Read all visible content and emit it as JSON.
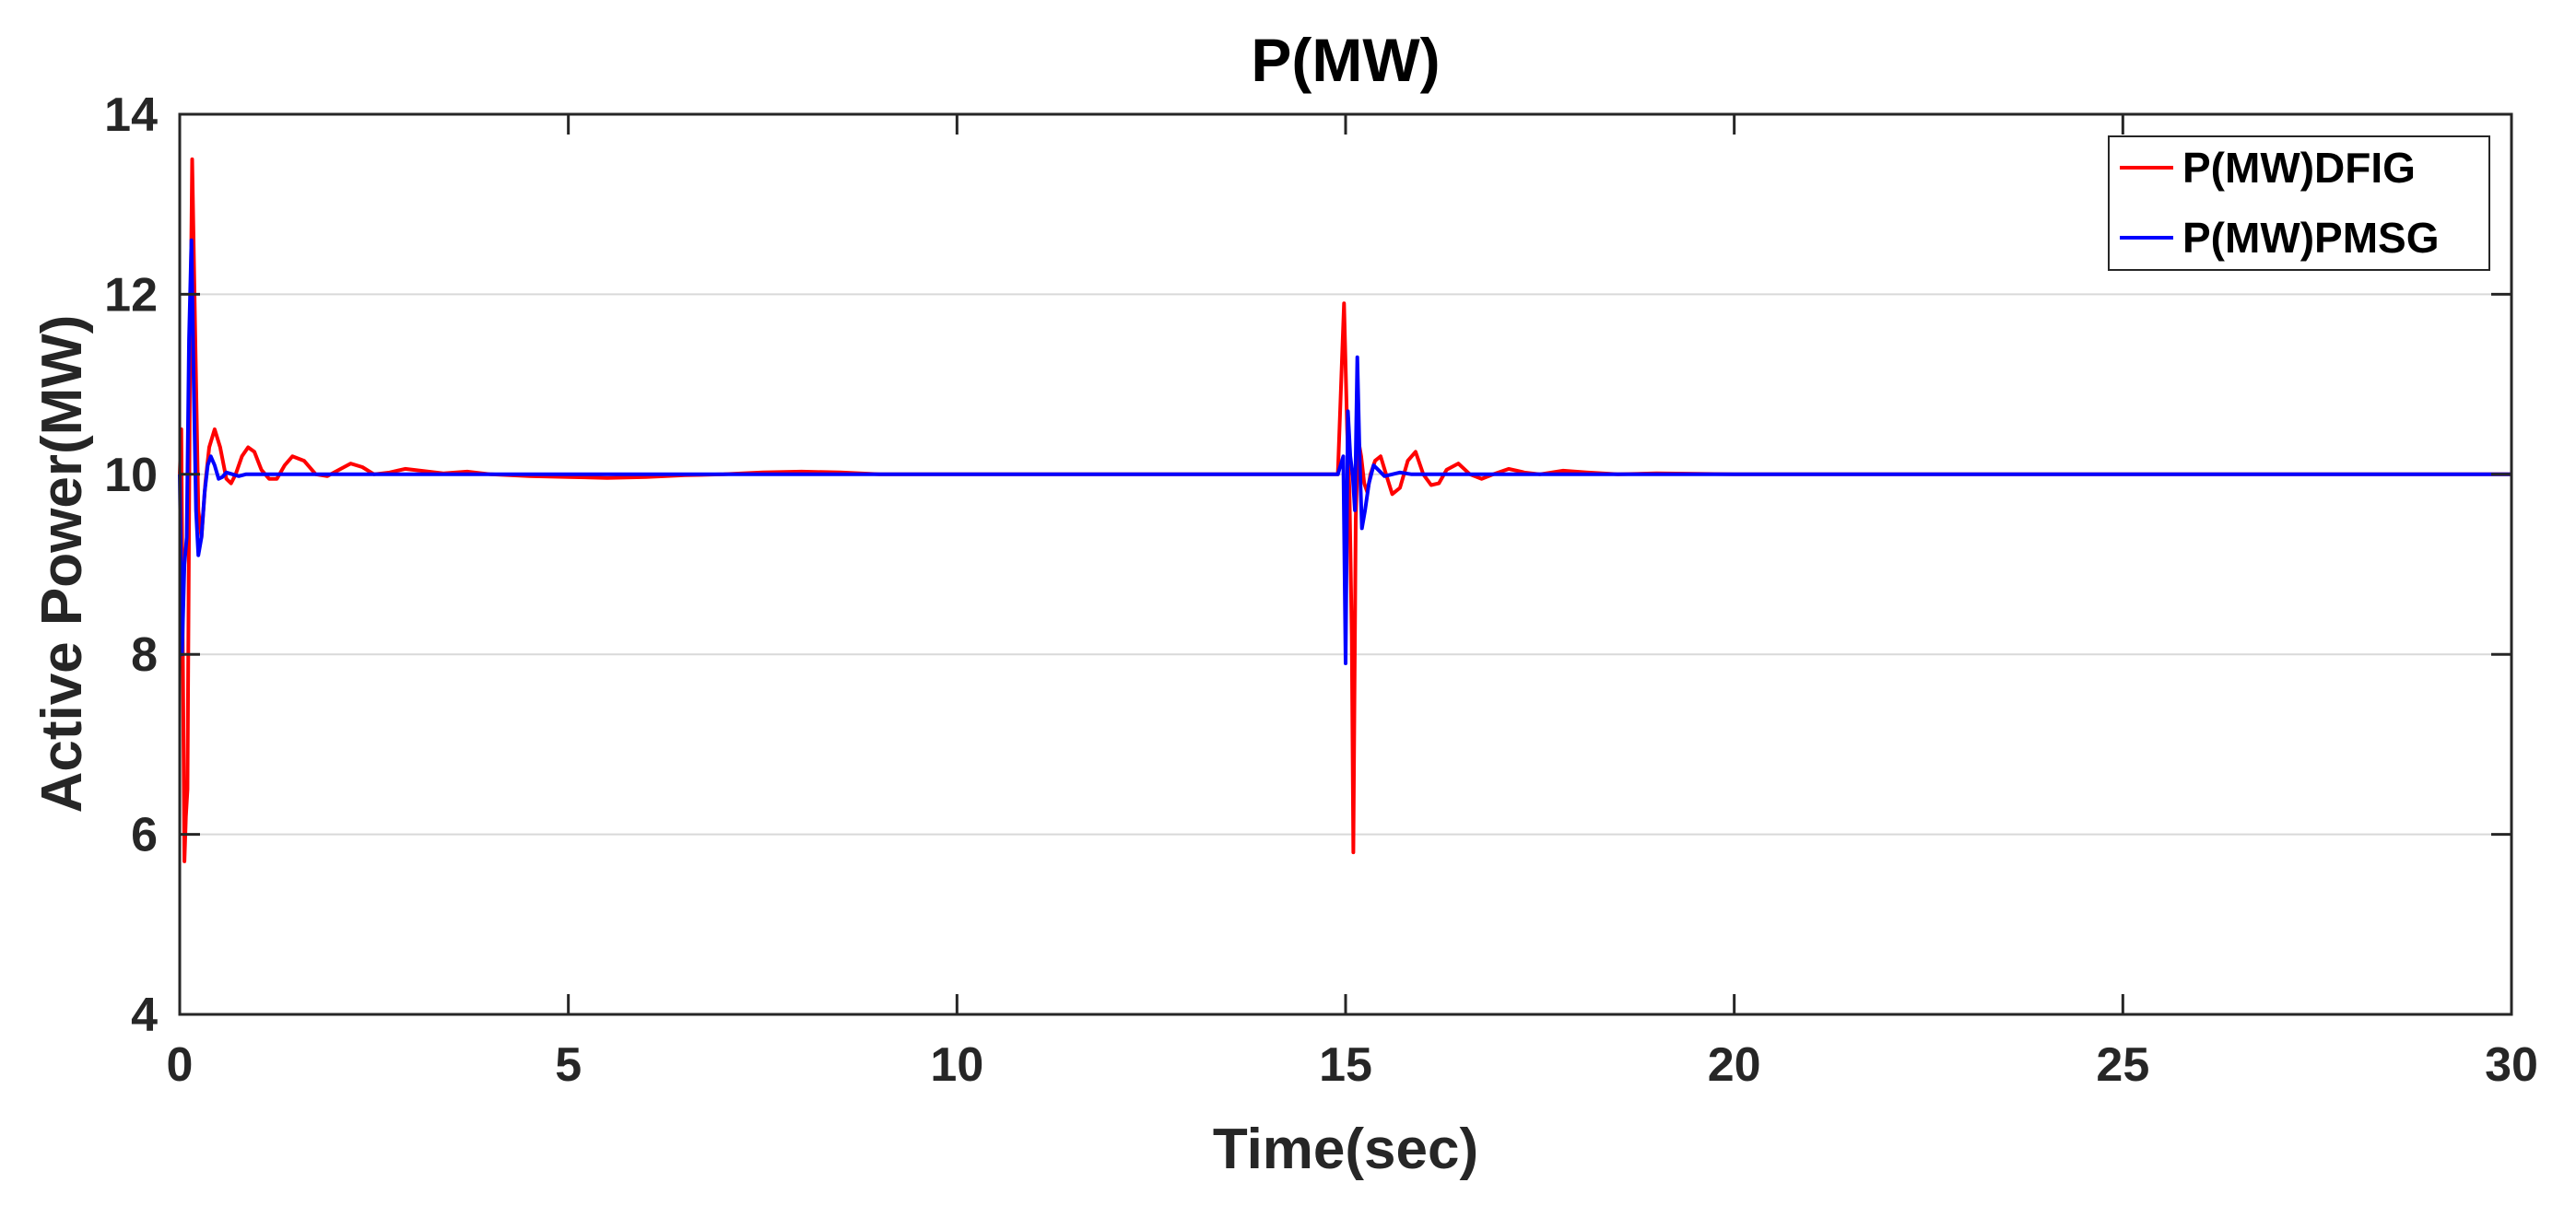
{
  "chart_data": {
    "type": "line",
    "title": "P(MW)",
    "xlabel": "Time(sec)",
    "ylabel": "Active Power(MW)",
    "xlim": [
      0,
      30
    ],
    "ylim": [
      4,
      14
    ],
    "xticks": [
      "0",
      "5",
      "10",
      "15",
      "20",
      "25",
      "30"
    ],
    "yticks": [
      "4",
      "6",
      "8",
      "10",
      "12",
      "14"
    ],
    "grid": "horizontal",
    "legend_position": "top-right",
    "series": [
      {
        "name": "P(MW)DFIG",
        "color": "#ff0000",
        "x": [
          0,
          0.02,
          0.04,
          0.06,
          0.08,
          0.1,
          0.13,
          0.16,
          0.2,
          0.24,
          0.28,
          0.33,
          0.38,
          0.45,
          0.52,
          0.6,
          0.66,
          0.72,
          0.8,
          0.88,
          0.96,
          1.05,
          1.15,
          1.25,
          1.35,
          1.45,
          1.6,
          1.75,
          1.9,
          2.05,
          2.2,
          2.35,
          2.5,
          2.7,
          2.9,
          3.1,
          3.4,
          3.7,
          4.0,
          4.5,
          5.0,
          5.5,
          6.0,
          6.5,
          7.0,
          7.5,
          8.0,
          8.5,
          9.0,
          9.5,
          10.0,
          11.0,
          12.0,
          13.0,
          14.0,
          14.9,
          14.98,
          15.02,
          15.05,
          15.08,
          15.1,
          15.13,
          15.16,
          15.2,
          15.24,
          15.28,
          15.32,
          15.38,
          15.45,
          15.52,
          15.6,
          15.7,
          15.8,
          15.9,
          16.0,
          16.1,
          16.2,
          16.3,
          16.45,
          16.6,
          16.75,
          16.9,
          17.1,
          17.3,
          17.5,
          17.8,
          18.1,
          18.5,
          19.0,
          20.0,
          22.0,
          24.0,
          26.0,
          28.0,
          30.0
        ],
        "y": [
          10.0,
          10.5,
          8.0,
          5.7,
          6.2,
          6.5,
          11.0,
          13.5,
          11.5,
          9.6,
          9.3,
          9.9,
          10.3,
          10.5,
          10.3,
          9.95,
          9.9,
          10.0,
          10.2,
          10.3,
          10.25,
          10.05,
          9.95,
          9.95,
          10.1,
          10.2,
          10.15,
          10.0,
          9.98,
          10.05,
          10.12,
          10.08,
          10.0,
          10.02,
          10.06,
          10.04,
          10.01,
          10.03,
          10.0,
          9.98,
          9.97,
          9.96,
          9.97,
          9.99,
          10.0,
          10.02,
          10.03,
          10.02,
          10.0,
          10.0,
          10.0,
          10.0,
          10.0,
          10.0,
          10.0,
          10.0,
          11.9,
          10.5,
          9.8,
          8.2,
          5.8,
          9.5,
          10.4,
          10.2,
          9.9,
          9.8,
          10.0,
          10.15,
          10.2,
          10.0,
          9.78,
          9.85,
          10.15,
          10.25,
          10.0,
          9.88,
          9.9,
          10.05,
          10.12,
          10.0,
          9.95,
          10.0,
          10.06,
          10.02,
          10.0,
          10.04,
          10.02,
          10.0,
          10.01,
          10.0,
          10.0,
          10.0,
          10.0,
          10.0,
          10.0
        ]
      },
      {
        "name": "P(MW)PMSG",
        "color": "#0000ff",
        "x": [
          0,
          0.03,
          0.06,
          0.09,
          0.12,
          0.15,
          0.18,
          0.21,
          0.24,
          0.28,
          0.32,
          0.36,
          0.4,
          0.45,
          0.5,
          0.55,
          0.6,
          0.68,
          0.76,
          0.85,
          1.0,
          1.5,
          2.0,
          3.0,
          5.0,
          8.0,
          10.0,
          12.0,
          14.0,
          14.9,
          14.97,
          15.0,
          15.03,
          15.06,
          15.09,
          15.12,
          15.15,
          15.18,
          15.21,
          15.25,
          15.3,
          15.36,
          15.42,
          15.5,
          15.6,
          15.7,
          15.85,
          16.0,
          16.3,
          17.0,
          18.0,
          20.0,
          25.0,
          30.0
        ],
        "y": [
          10.0,
          8.0,
          9.0,
          9.3,
          11.5,
          12.6,
          11.0,
          9.6,
          9.1,
          9.3,
          9.8,
          10.1,
          10.2,
          10.1,
          9.95,
          9.97,
          10.02,
          10.0,
          9.98,
          10.0,
          10.0,
          10.0,
          10.0,
          10.0,
          10.0,
          10.0,
          10.0,
          10.0,
          10.0,
          10.0,
          10.2,
          7.9,
          10.7,
          10.2,
          10.0,
          9.6,
          11.3,
          10.2,
          9.4,
          9.6,
          9.9,
          10.1,
          10.05,
          9.98,
          10.0,
          10.02,
          10.0,
          10.0,
          10.0,
          10.0,
          10.0,
          10.0,
          10.0,
          10.0
        ]
      }
    ]
  }
}
